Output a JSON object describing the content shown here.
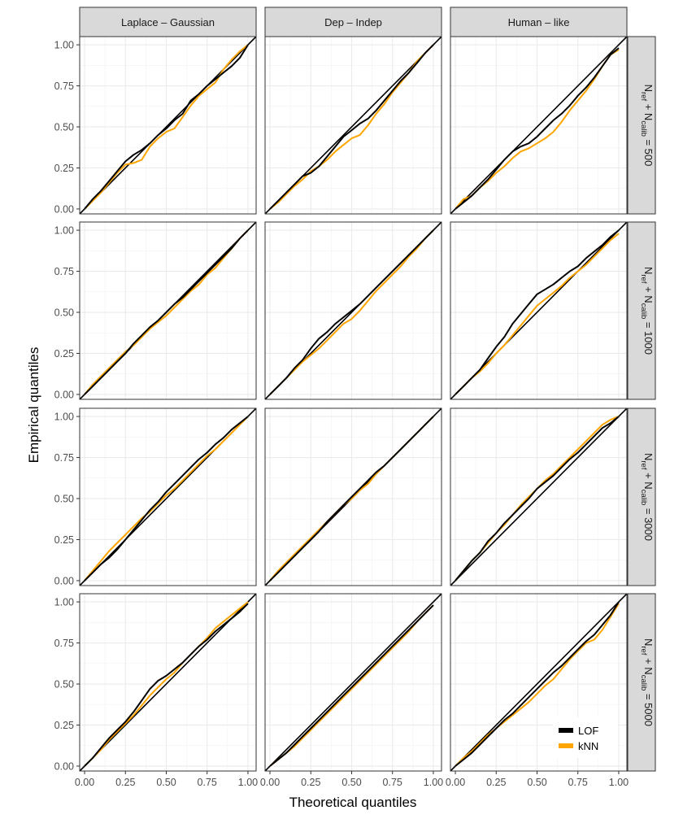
{
  "chart_data": {
    "type": "line",
    "facet_cols": [
      "Laplace – Gaussian",
      "Dep – Indep",
      "Human – like"
    ],
    "facet_rows": [
      {
        "prefix": "N",
        "sub1": "ref",
        "plus": " + N",
        "sub2": "calib",
        "suffix": " = 500"
      },
      {
        "prefix": "N",
        "sub1": "ref",
        "plus": " + N",
        "sub2": "calib",
        "suffix": " = 1000"
      },
      {
        "prefix": "N",
        "sub1": "ref",
        "plus": " + N",
        "sub2": "calib",
        "suffix": " = 3000"
      },
      {
        "prefix": "N",
        "sub1": "ref",
        "plus": " + N",
        "sub2": "calib",
        "suffix": " = 5000"
      }
    ],
    "xlabel": "Theoretical quantiles",
    "ylabel": "Empirical quantiles",
    "xlim": [
      -0.03,
      1.05
    ],
    "ylim": [
      -0.03,
      1.05
    ],
    "x_ticks": [
      "0.00",
      "0.25",
      "0.50",
      "0.75",
      "1.00"
    ],
    "y_ticks": [
      "0.00",
      "0.25",
      "0.50",
      "0.75",
      "1.00"
    ],
    "grid": true,
    "reference_line": "y = x",
    "legend": {
      "position": "bottom-right",
      "entries": [
        {
          "name": "LOF",
          "color": "#000000"
        },
        {
          "name": "kNN",
          "color": "#FFA500"
        }
      ]
    },
    "series_colors": {
      "LOF": "#000000",
      "kNN": "#FFA500"
    },
    "x": [
      0.0,
      0.05,
      0.1,
      0.15,
      0.2,
      0.25,
      0.3,
      0.35,
      0.4,
      0.45,
      0.5,
      0.55,
      0.6,
      0.65,
      0.7,
      0.75,
      0.8,
      0.85,
      0.9,
      0.95,
      1.0
    ],
    "panels": [
      [
        {
          "LOF": [
            0.0,
            0.06,
            0.11,
            0.17,
            0.23,
            0.29,
            0.33,
            0.36,
            0.4,
            0.45,
            0.49,
            0.54,
            0.58,
            0.66,
            0.7,
            0.75,
            0.79,
            0.83,
            0.87,
            0.92,
            1.0
          ],
          "kNN": [
            0.0,
            0.05,
            0.1,
            0.16,
            0.22,
            0.27,
            0.28,
            0.3,
            0.38,
            0.43,
            0.47,
            0.49,
            0.56,
            0.63,
            0.69,
            0.73,
            0.77,
            0.85,
            0.91,
            0.96,
            1.0
          ]
        },
        {
          "LOF": [
            0.0,
            0.05,
            0.1,
            0.15,
            0.2,
            0.22,
            0.26,
            0.32,
            0.38,
            0.44,
            0.48,
            0.52,
            0.55,
            0.6,
            0.66,
            0.72,
            0.78,
            0.83,
            0.89,
            0.95,
            1.0
          ],
          "kNN": [
            0.0,
            0.04,
            0.09,
            0.14,
            0.18,
            0.23,
            0.26,
            0.3,
            0.35,
            0.39,
            0.43,
            0.45,
            0.51,
            0.58,
            0.64,
            0.71,
            0.77,
            0.83,
            0.9,
            0.95,
            1.0
          ]
        },
        {
          "LOF": [
            0.0,
            0.04,
            0.08,
            0.13,
            0.18,
            0.24,
            0.3,
            0.35,
            0.38,
            0.4,
            0.44,
            0.49,
            0.54,
            0.58,
            0.63,
            0.69,
            0.74,
            0.8,
            0.87,
            0.94,
            0.98
          ],
          "kNN": [
            0.0,
            0.06,
            0.08,
            0.13,
            0.17,
            0.22,
            0.26,
            0.31,
            0.35,
            0.37,
            0.4,
            0.43,
            0.47,
            0.53,
            0.6,
            0.66,
            0.72,
            0.79,
            0.87,
            0.94,
            0.97
          ]
        }
      ],
      [
        {
          "LOF": [
            0.0,
            0.05,
            0.1,
            0.15,
            0.2,
            0.25,
            0.31,
            0.36,
            0.41,
            0.45,
            0.5,
            0.55,
            0.59,
            0.64,
            0.69,
            0.74,
            0.79,
            0.84,
            0.89,
            0.95,
            1.0
          ],
          "kNN": [
            0.0,
            0.06,
            0.11,
            0.16,
            0.21,
            0.26,
            0.3,
            0.35,
            0.4,
            0.44,
            0.48,
            0.53,
            0.58,
            0.63,
            0.67,
            0.73,
            0.77,
            0.83,
            0.89,
            0.95,
            1.0
          ]
        },
        {
          "LOF": [
            0.0,
            0.05,
            0.1,
            0.16,
            0.21,
            0.28,
            0.34,
            0.38,
            0.43,
            0.47,
            0.51,
            0.55,
            0.6,
            0.65,
            0.7,
            0.75,
            0.8,
            0.85,
            0.9,
            0.95,
            1.0
          ],
          "kNN": [
            0.0,
            0.05,
            0.1,
            0.15,
            0.2,
            0.24,
            0.28,
            0.33,
            0.38,
            0.43,
            0.46,
            0.51,
            0.57,
            0.63,
            0.68,
            0.73,
            0.78,
            0.84,
            0.89,
            0.95,
            1.0
          ]
        },
        {
          "LOF": [
            0.0,
            0.05,
            0.1,
            0.15,
            0.22,
            0.29,
            0.35,
            0.43,
            0.49,
            0.55,
            0.61,
            0.64,
            0.67,
            0.71,
            0.75,
            0.78,
            0.83,
            0.87,
            0.91,
            0.96,
            1.0
          ],
          "kNN": [
            0.0,
            0.05,
            0.1,
            0.14,
            0.19,
            0.25,
            0.3,
            0.36,
            0.42,
            0.48,
            0.54,
            0.58,
            0.62,
            0.66,
            0.71,
            0.75,
            0.79,
            0.84,
            0.89,
            0.94,
            0.98
          ]
        }
      ],
      [
        {
          "LOF": [
            0.0,
            0.05,
            0.1,
            0.14,
            0.19,
            0.25,
            0.31,
            0.37,
            0.43,
            0.48,
            0.54,
            0.59,
            0.64,
            0.69,
            0.74,
            0.78,
            0.83,
            0.87,
            0.92,
            0.96,
            1.0
          ],
          "kNN": [
            0.0,
            0.06,
            0.12,
            0.18,
            0.23,
            0.28,
            0.33,
            0.38,
            0.42,
            0.47,
            0.52,
            0.56,
            0.61,
            0.66,
            0.71,
            0.76,
            0.8,
            0.85,
            0.9,
            0.95,
            1.0
          ]
        },
        {
          "LOF": [
            0.0,
            0.05,
            0.1,
            0.15,
            0.2,
            0.25,
            0.3,
            0.36,
            0.41,
            0.46,
            0.51,
            0.56,
            0.61,
            0.66,
            0.7,
            0.75,
            0.8,
            0.85,
            0.9,
            0.95,
            1.0
          ],
          "kNN": [
            0.0,
            0.06,
            0.11,
            0.16,
            0.21,
            0.26,
            0.31,
            0.36,
            0.41,
            0.46,
            0.5,
            0.55,
            0.59,
            0.65,
            0.7,
            0.75,
            0.8,
            0.85,
            0.9,
            0.95,
            1.0
          ]
        },
        {
          "LOF": [
            0.0,
            0.06,
            0.12,
            0.17,
            0.24,
            0.29,
            0.35,
            0.4,
            0.45,
            0.5,
            0.56,
            0.6,
            0.64,
            0.69,
            0.74,
            0.78,
            0.83,
            0.88,
            0.93,
            0.96,
            1.0
          ],
          "kNN": [
            0.0,
            0.06,
            0.12,
            0.17,
            0.23,
            0.29,
            0.34,
            0.4,
            0.46,
            0.51,
            0.56,
            0.61,
            0.65,
            0.7,
            0.75,
            0.8,
            0.85,
            0.9,
            0.95,
            0.98,
            1.0
          ]
        }
      ],
      [
        {
          "LOF": [
            0.0,
            0.05,
            0.11,
            0.17,
            0.22,
            0.27,
            0.33,
            0.4,
            0.47,
            0.52,
            0.55,
            0.59,
            0.63,
            0.68,
            0.73,
            0.77,
            0.82,
            0.86,
            0.9,
            0.94,
            0.99
          ],
          "kNN": [
            0.0,
            0.05,
            0.1,
            0.16,
            0.21,
            0.26,
            0.31,
            0.37,
            0.43,
            0.48,
            0.53,
            0.57,
            0.63,
            0.68,
            0.73,
            0.78,
            0.84,
            0.88,
            0.92,
            0.96,
            1.0
          ]
        },
        {
          "LOF": [
            0.0,
            0.04,
            0.08,
            0.13,
            0.18,
            0.23,
            0.28,
            0.33,
            0.38,
            0.43,
            0.48,
            0.53,
            0.58,
            0.63,
            0.68,
            0.73,
            0.78,
            0.83,
            0.88,
            0.93,
            0.98
          ],
          "kNN": [
            0.0,
            0.04,
            0.08,
            0.12,
            0.17,
            0.22,
            0.27,
            0.32,
            0.37,
            0.42,
            0.47,
            0.52,
            0.57,
            0.62,
            0.67,
            0.72,
            0.77,
            0.82,
            0.88,
            0.93,
            0.98
          ]
        },
        {
          "LOF": [
            0.0,
            0.04,
            0.08,
            0.13,
            0.18,
            0.23,
            0.28,
            0.32,
            0.37,
            0.42,
            0.47,
            0.52,
            0.57,
            0.61,
            0.66,
            0.71,
            0.76,
            0.8,
            0.86,
            0.92,
            1.0
          ],
          "kNN": [
            0.0,
            0.05,
            0.09,
            0.14,
            0.19,
            0.23,
            0.27,
            0.31,
            0.35,
            0.39,
            0.44,
            0.49,
            0.53,
            0.59,
            0.65,
            0.7,
            0.75,
            0.77,
            0.83,
            0.91,
            0.99
          ]
        }
      ]
    ]
  }
}
